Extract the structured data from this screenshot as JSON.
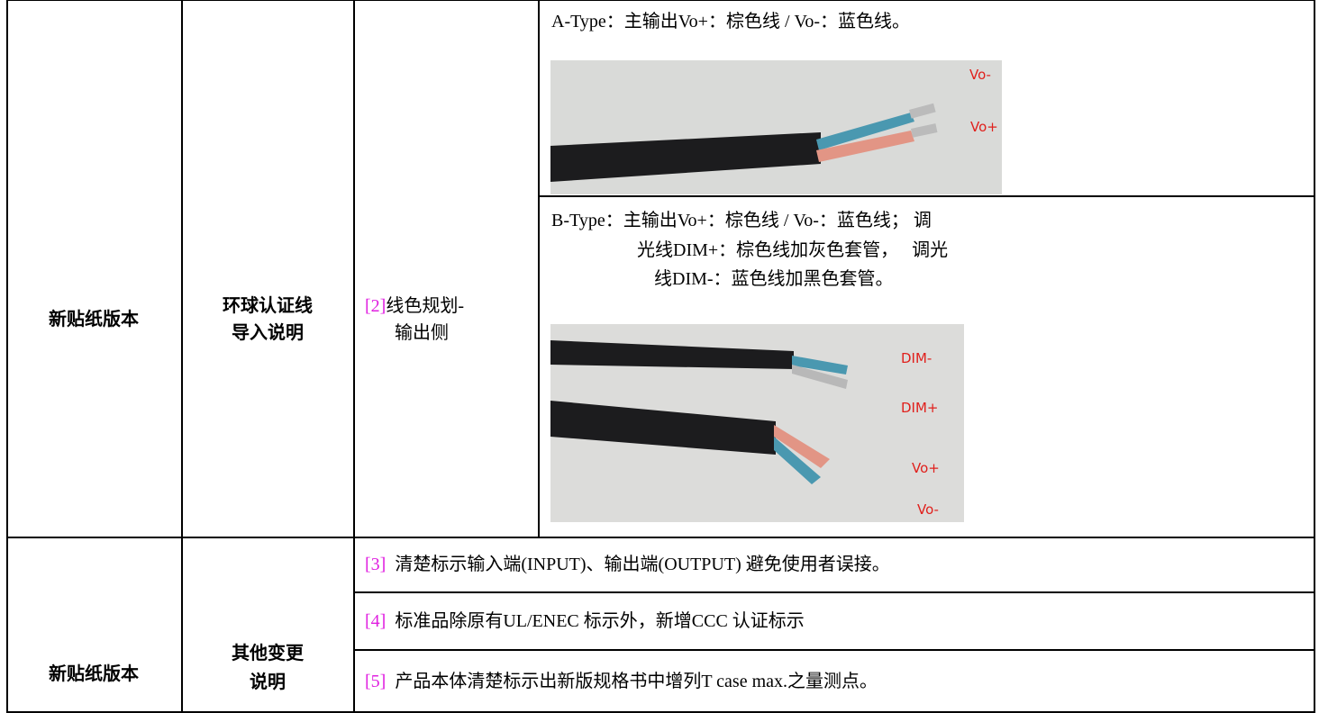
{
  "table": {
    "rows": [
      {
        "label": "新贴纸版本",
        "topic": [
          "环球认证线",
          "导入说明"
        ],
        "item": {
          "ref": "[2]",
          "text": [
            "线色规划-",
            "输出侧"
          ]
        },
        "details": [
          {
            "text": [
              "A-Type：主输出Vo+：棕色线 / Vo-：蓝色线。"
            ],
            "photo_labels": [
              "Vo-",
              "Vo+"
            ]
          },
          {
            "text": [
              "B-Type：主输出Vo+：棕色线 / Vo-：蓝色线； 调",
              "光线DIM+：棕色线加灰色套管，   调光",
              "线DIM-：蓝色线加黑色套管。"
            ],
            "photo_labels": [
              "DIM-",
              "DIM+",
              "Vo+",
              "Vo-"
            ]
          }
        ]
      },
      {
        "label": "新贴纸版本",
        "topic": [
          "其他变更",
          "说明"
        ],
        "items": [
          {
            "ref": "[3]",
            "text": "清楚标示输入端(INPUT)、输出端(OUTPUT) 避免使用者误接。"
          },
          {
            "ref": "[4]",
            "text": "标准品除原有UL/ENEC 标示外，新增CCC 认证标示"
          },
          {
            "ref": "[5]",
            "text": "产品本体清楚标示出新版规格书中增列T case max.之量测点。"
          }
        ]
      }
    ]
  }
}
